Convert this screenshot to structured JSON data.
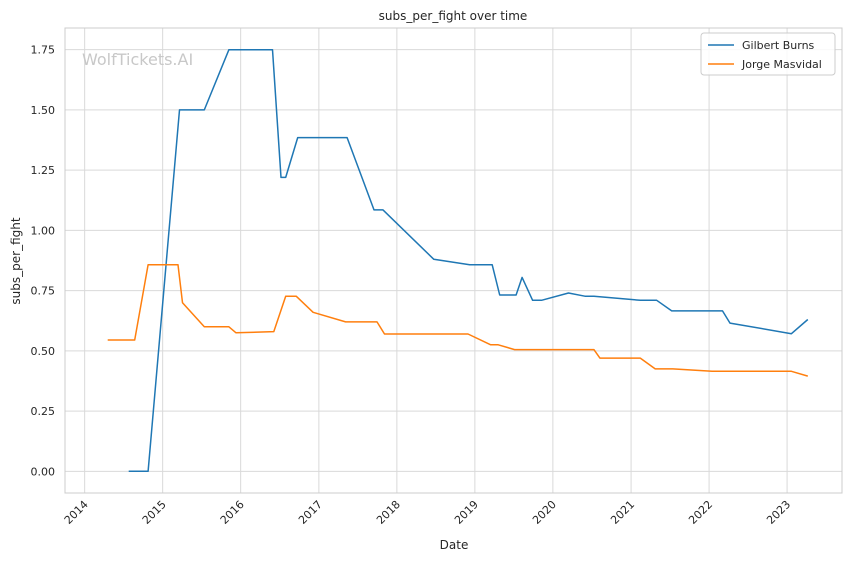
{
  "chart_data": {
    "type": "line",
    "title": "subs_per_fight over time",
    "xlabel": "Date",
    "ylabel": "subs_per_fight",
    "watermark": "WolfTickets.AI",
    "xlim": [
      "2013-10-01",
      "2023-09-15"
    ],
    "ylim": [
      -0.09,
      1.84
    ],
    "x_ticks": [
      "2014",
      "2015",
      "2016",
      "2017",
      "2018",
      "2019",
      "2020",
      "2021",
      "2022",
      "2023"
    ],
    "y_ticks": [
      "0.00",
      "0.25",
      "0.50",
      "0.75",
      "1.00",
      "1.25",
      "1.50",
      "1.75"
    ],
    "y_tick_values": [
      0,
      0.25,
      0.5,
      0.75,
      1.0,
      1.25,
      1.5,
      1.75
    ],
    "grid": true,
    "legend_position": "top-right",
    "series": [
      {
        "name": "Gilbert Burns",
        "color": "#1f77b4",
        "points": [
          [
            "2014-07-26",
            0.0
          ],
          [
            "2014-10-25",
            0.0
          ],
          [
            "2015-03-21",
            1.5
          ],
          [
            "2015-07-15",
            1.5
          ],
          [
            "2015-11-07",
            1.75
          ],
          [
            "2016-05-29",
            1.75
          ],
          [
            "2016-07-08",
            1.22
          ],
          [
            "2016-07-30",
            1.22
          ],
          [
            "2016-09-24",
            1.385
          ],
          [
            "2017-05-13",
            1.385
          ],
          [
            "2017-09-16",
            1.085
          ],
          [
            "2017-10-28",
            1.085
          ],
          [
            "2018-06-23",
            0.88
          ],
          [
            "2018-12-08",
            0.857
          ],
          [
            "2019-03-23",
            0.857
          ],
          [
            "2019-04-27",
            0.732
          ],
          [
            "2019-07-13",
            0.732
          ],
          [
            "2019-08-10",
            0.805
          ],
          [
            "2019-09-28",
            0.71
          ],
          [
            "2019-11-09",
            0.71
          ],
          [
            "2020-03-14",
            0.74
          ],
          [
            "2020-05-30",
            0.727
          ],
          [
            "2020-07-11",
            0.727
          ],
          [
            "2021-02-13",
            0.71
          ],
          [
            "2021-05-01",
            0.71
          ],
          [
            "2021-07-10",
            0.666
          ],
          [
            "2022-03-05",
            0.666
          ],
          [
            "2022-04-09",
            0.615
          ],
          [
            "2023-01-21",
            0.571
          ],
          [
            "2023-04-08",
            0.63
          ]
        ]
      },
      {
        "name": "Jorge Masvidal",
        "color": "#ff7f0e",
        "points": [
          [
            "2014-04-19",
            0.545
          ],
          [
            "2014-08-23",
            0.545
          ],
          [
            "2014-10-25",
            0.857
          ],
          [
            "2015-03-14",
            0.857
          ],
          [
            "2015-04-04",
            0.7
          ],
          [
            "2015-07-15",
            0.6
          ],
          [
            "2015-11-07",
            0.6
          ],
          [
            "2015-12-10",
            0.575
          ],
          [
            "2016-06-04",
            0.58
          ],
          [
            "2016-07-30",
            0.727
          ],
          [
            "2016-09-17",
            0.727
          ],
          [
            "2016-12-05",
            0.66
          ],
          [
            "2017-05-06",
            0.62
          ],
          [
            "2017-09-30",
            0.62
          ],
          [
            "2017-11-04",
            0.57
          ],
          [
            "2018-11-30",
            0.57
          ],
          [
            "2019-03-16",
            0.525
          ],
          [
            "2019-04-20",
            0.525
          ],
          [
            "2019-07-06",
            0.505
          ],
          [
            "2020-07-11",
            0.505
          ],
          [
            "2020-08-08",
            0.47
          ],
          [
            "2021-02-13",
            0.47
          ],
          [
            "2021-04-24",
            0.425
          ],
          [
            "2021-07-15",
            0.425
          ],
          [
            "2022-01-15",
            0.415
          ],
          [
            "2022-03-05",
            0.415
          ],
          [
            "2023-01-21",
            0.415
          ],
          [
            "2023-04-08",
            0.395
          ]
        ]
      }
    ]
  }
}
